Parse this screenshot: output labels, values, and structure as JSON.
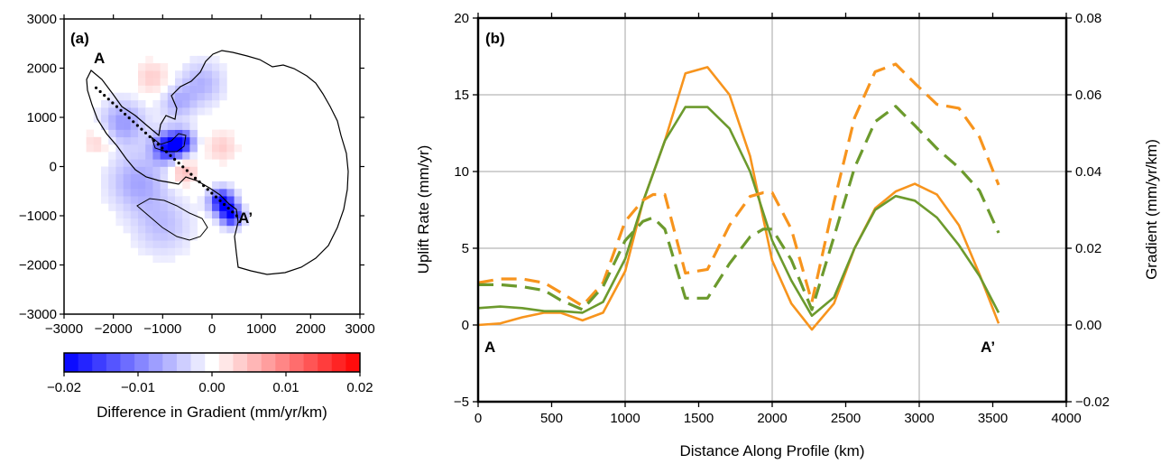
{
  "chart_data": [
    {
      "type": "heatmap",
      "panel_label": "(a)",
      "x_ticks": [
        -3000,
        -2000,
        -1000,
        0,
        1000,
        2000,
        3000
      ],
      "y_ticks": [
        -3000,
        -2000,
        -1000,
        0,
        1000,
        2000,
        3000
      ],
      "x_tick_labels": [
        "−3000",
        "−2000",
        "−1000",
        "0",
        "1000",
        "2000",
        "3000"
      ],
      "y_tick_labels": [
        "−3000",
        "−2000",
        "−1000",
        "0",
        "1000",
        "2000",
        "3000"
      ],
      "xlim": [
        -3000,
        3000
      ],
      "ylim": [
        -3000,
        3000
      ],
      "profile": {
        "start": [
          -2350,
          1600
        ],
        "end": [
          500,
          -1000
        ],
        "start_label": "A",
        "end_label": "A’"
      },
      "colorbar": {
        "range": [
          -0.02,
          0.02
        ],
        "tick_values": [
          -0.02,
          -0.01,
          0.0,
          0.01,
          0.02
        ],
        "tick_labels": [
          "−0.02",
          "−0.01",
          "0.00",
          "0.01",
          "0.02"
        ],
        "label": "Difference in Gradient (mm/yr/km)",
        "low_color": "#0000ff",
        "mid_color": "#ffffff",
        "high_color": "#ff0000"
      },
      "anomalies": [
        {
          "x": -900,
          "y": 400,
          "value": -0.018,
          "r": 300
        },
        {
          "x": -600,
          "y": 500,
          "value": -0.015,
          "r": 250
        },
        {
          "x": 200,
          "y": -700,
          "value": -0.02,
          "r": 250
        },
        {
          "x": 400,
          "y": -1000,
          "value": -0.018,
          "r": 220
        },
        {
          "x": -1800,
          "y": 900,
          "value": -0.008,
          "r": 450
        },
        {
          "x": -1500,
          "y": -300,
          "value": -0.007,
          "r": 600
        },
        {
          "x": -1000,
          "y": -1200,
          "value": -0.005,
          "r": 600
        },
        {
          "x": -200,
          "y": 1700,
          "value": -0.006,
          "r": 450
        },
        {
          "x": -700,
          "y": 1300,
          "value": -0.006,
          "r": 350
        },
        {
          "x": -600,
          "y": -100,
          "value": 0.006,
          "r": 300
        },
        {
          "x": -1200,
          "y": 1800,
          "value": 0.004,
          "r": 350
        },
        {
          "x": -2300,
          "y": 500,
          "value": 0.004,
          "r": 300
        },
        {
          "x": 200,
          "y": 400,
          "value": 0.004,
          "r": 300
        }
      ]
    },
    {
      "type": "line",
      "panel_label": "(b)",
      "xlabel": "Distance Along Profile (km)",
      "ylabel": "Uplift Rate (mm/yr)",
      "ylabel_right": "Gradient (mm/yr/km)",
      "xlim": [
        0,
        4000
      ],
      "ylim": [
        -5,
        20
      ],
      "ylim_right": [
        -0.02,
        0.08
      ],
      "x_ticks": [
        0,
        500,
        1000,
        1500,
        2000,
        2500,
        3000,
        3500,
        4000
      ],
      "x_tick_labels": [
        "0",
        "500",
        "1000",
        "1500",
        "2000",
        "2500",
        "3000",
        "3500",
        "4000"
      ],
      "y_ticks": [
        -5,
        0,
        5,
        10,
        15,
        20
      ],
      "y_tick_labels": [
        "−5",
        "0",
        "5",
        "10",
        "15",
        "20"
      ],
      "y_right_ticks": [
        -0.02,
        0.0,
        0.02,
        0.04,
        0.06,
        0.08
      ],
      "y_right_tick_labels": [
        "−0.02",
        "0.00",
        "0.02",
        "0.04",
        "0.06",
        "0.08"
      ],
      "grid": true,
      "start_label": "A",
      "end_label": "A’",
      "series": [
        {
          "color": "#f7941d",
          "style": "solid",
          "axis": "left",
          "x": [
            0,
            150,
            300,
            450,
            560,
            710,
            850,
            1000,
            1120,
            1270,
            1410,
            1560,
            1710,
            1850,
            2000,
            2130,
            2270,
            2420,
            2560,
            2700,
            2840,
            2970,
            3120,
            3270,
            3410,
            3540
          ],
          "y": [
            0.0,
            0.1,
            0.5,
            0.8,
            0.8,
            0.3,
            0.8,
            3.5,
            8.0,
            12.0,
            16.4,
            16.8,
            15.0,
            11.0,
            4.2,
            1.4,
            -0.3,
            1.4,
            5.0,
            7.6,
            8.7,
            9.2,
            8.5,
            6.5,
            3.3,
            0.1
          ]
        },
        {
          "color": "#6c9a2d",
          "style": "solid",
          "axis": "left",
          "x": [
            0,
            150,
            300,
            450,
            560,
            710,
            850,
            1000,
            1120,
            1270,
            1410,
            1560,
            1710,
            1850,
            2000,
            2130,
            2270,
            2420,
            2560,
            2700,
            2840,
            2970,
            3120,
            3270,
            3410,
            3540
          ],
          "y": [
            1.1,
            1.2,
            1.1,
            0.9,
            0.9,
            0.8,
            1.5,
            4.3,
            8.0,
            12.0,
            14.2,
            14.2,
            12.8,
            10.0,
            5.5,
            2.9,
            0.6,
            1.8,
            5.0,
            7.5,
            8.4,
            8.1,
            7.0,
            5.2,
            3.2,
            0.8
          ]
        },
        {
          "color": "#f7941d",
          "style": "dashed",
          "axis": "right",
          "x": [
            0,
            150,
            300,
            450,
            560,
            710,
            850,
            1000,
            1120,
            1190,
            1270,
            1410,
            1560,
            1710,
            1850,
            1940,
            2000,
            2130,
            2270,
            2420,
            2560,
            2700,
            2840,
            2970,
            3120,
            3270,
            3410,
            3540
          ],
          "y": [
            0.011,
            0.012,
            0.012,
            0.011,
            0.0085,
            0.005,
            0.011,
            0.027,
            0.0325,
            0.034,
            0.034,
            0.0135,
            0.0145,
            0.026,
            0.0335,
            0.0345,
            0.0345,
            0.025,
            0.006,
            0.032,
            0.054,
            0.066,
            0.068,
            0.063,
            0.0575,
            0.0565,
            0.049,
            0.0365
          ]
        },
        {
          "color": "#6c9a2d",
          "style": "dashed",
          "axis": "right",
          "x": [
            0,
            150,
            300,
            450,
            560,
            710,
            850,
            1000,
            1120,
            1190,
            1270,
            1410,
            1560,
            1710,
            1850,
            1940,
            2000,
            2130,
            2270,
            2420,
            2560,
            2700,
            2840,
            2970,
            3120,
            3270,
            3410,
            3540
          ],
          "y": [
            0.0105,
            0.0105,
            0.01,
            0.009,
            0.0065,
            0.004,
            0.01,
            0.022,
            0.027,
            0.028,
            0.025,
            0.007,
            0.007,
            0.016,
            0.023,
            0.025,
            0.025,
            0.017,
            0.004,
            0.023,
            0.041,
            0.053,
            0.057,
            0.052,
            0.046,
            0.041,
            0.035,
            0.024
          ]
        }
      ]
    }
  ]
}
